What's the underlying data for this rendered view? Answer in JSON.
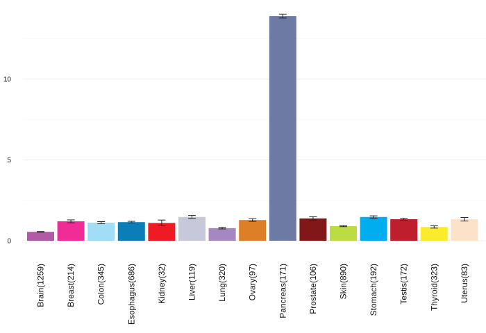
{
  "chart_data": {
    "type": "bar",
    "title": "",
    "xlabel": "",
    "ylabel": "",
    "ylim": [
      0,
      14
    ],
    "yticks": [
      0,
      5,
      10
    ],
    "grid": true,
    "categories": [
      "Brain(1259)",
      "Breast(214)",
      "Colon(345)",
      "Esophagus(686)",
      "Kidney(32)",
      "Liver(119)",
      "Lung(320)",
      "Ovary(97)",
      "Pancreas(171)",
      "Prostate(106)",
      "Skin(890)",
      "Stomach(192)",
      "Testis(172)",
      "Thyroid(323)",
      "Uterus(83)"
    ],
    "values": [
      0.55,
      1.2,
      1.12,
      1.15,
      1.1,
      1.47,
      0.78,
      1.28,
      13.9,
      1.38,
      0.9,
      1.47,
      1.33,
      0.85,
      1.33
    ],
    "error": [
      0.02,
      0.09,
      0.06,
      0.05,
      0.18,
      0.09,
      0.05,
      0.08,
      0.12,
      0.1,
      0.03,
      0.07,
      0.06,
      0.07,
      0.11
    ],
    "colors": [
      "#B15BA6",
      "#F02D96",
      "#A2DDF7",
      "#0A7FB7",
      "#EF1B24",
      "#C7C8DA",
      "#A687C3",
      "#DC7F26",
      "#6C7AA4",
      "#821719",
      "#BDDB43",
      "#00AEEF",
      "#BF1E2D",
      "#F9EC2F",
      "#FBE2C8"
    ]
  }
}
